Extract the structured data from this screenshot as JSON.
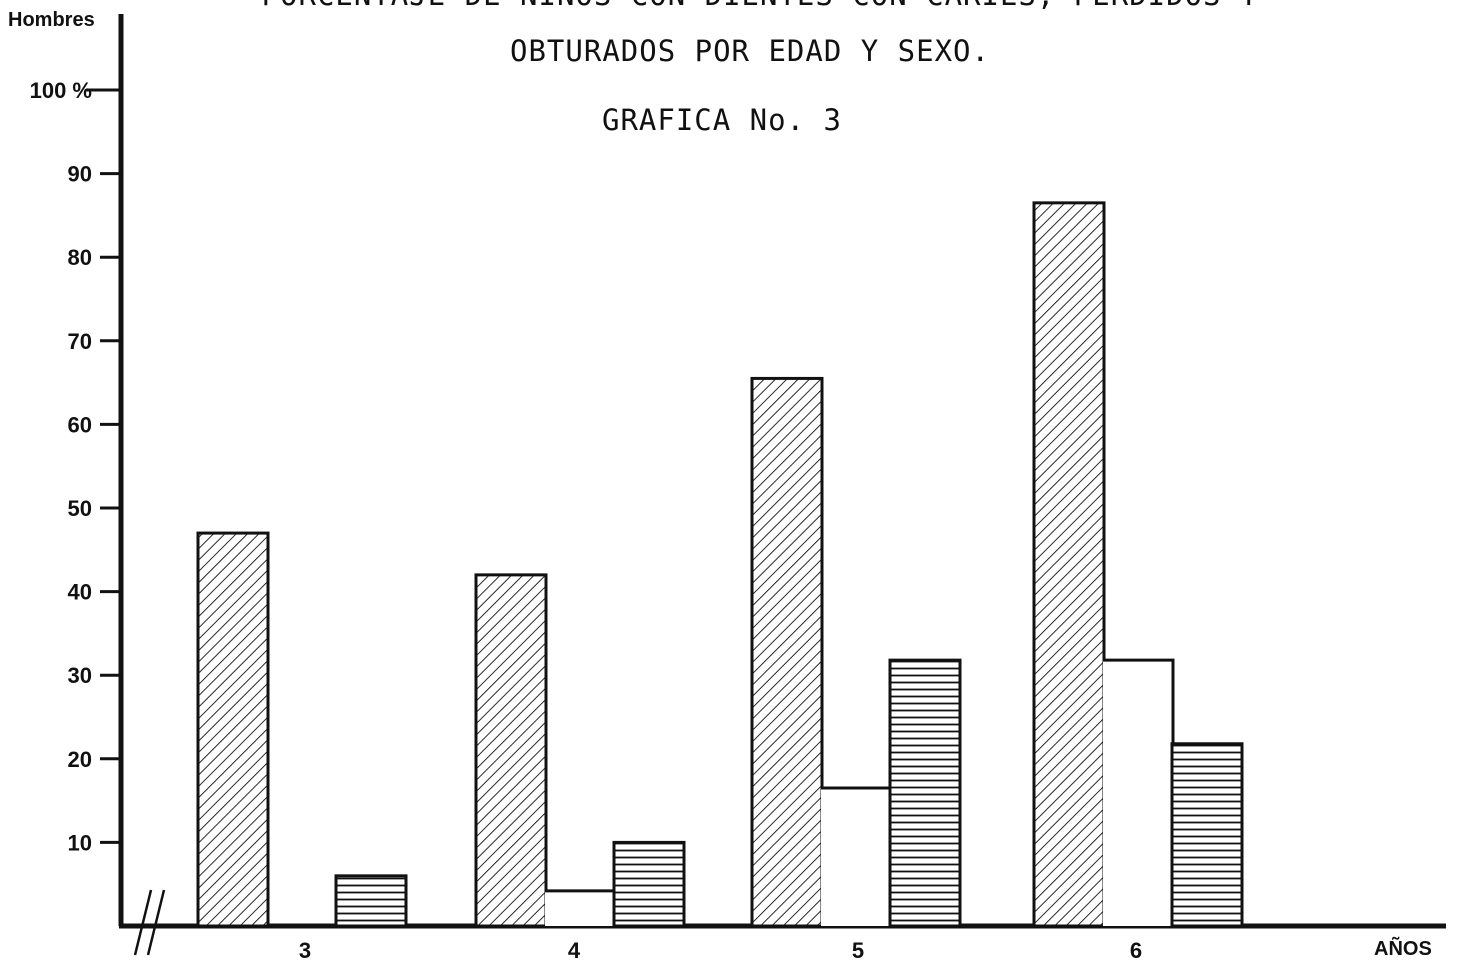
{
  "chart_data": {
    "type": "bar",
    "title_line_1": "PORCENTAJE DE NIÑOS CON DIENTES CON CARIES, PERDIDOS Y",
    "title_line_2": "OBTURADOS POR EDAD Y SEXO.",
    "subtitle": "GRAFICA No. 3",
    "ylabel": "Hombres",
    "xlabel": "AÑOS",
    "ylim": [
      0,
      100
    ],
    "y_ticks": [
      "10",
      "20",
      "30",
      "40",
      "50",
      "60",
      "70",
      "80",
      "90",
      "100 %"
    ],
    "y_tick_values": [
      10,
      20,
      30,
      40,
      50,
      60,
      70,
      80,
      90,
      100
    ],
    "categories": [
      "3",
      "4",
      "5",
      "6"
    ],
    "series": [
      {
        "pattern": "diagonal-hatch",
        "values": [
          47,
          42,
          65.5,
          86.5
        ]
      },
      {
        "pattern": "blank",
        "values": [
          0,
          4.2,
          16.5,
          31.8
        ]
      },
      {
        "pattern": "horizontal-hatch",
        "values": [
          6,
          10,
          31.8,
          21.8
        ]
      }
    ],
    "axis_break": true,
    "grid": false,
    "legend": "none"
  },
  "colors": {
    "ink": "#111111",
    "paper": "#ffffff"
  }
}
